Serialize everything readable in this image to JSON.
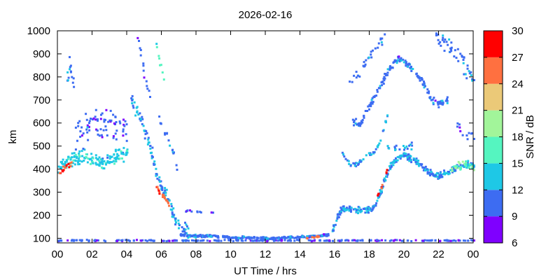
{
  "chart_data": {
    "type": "heatmap",
    "title": "2026-02-16",
    "xlabel": "UT Time / hrs",
    "ylabel": "km",
    "xlim": [
      0,
      24
    ],
    "ylim": [
      80,
      1000
    ],
    "x_ticks": [
      "00",
      "02",
      "04",
      "06",
      "08",
      "10",
      "12",
      "14",
      "16",
      "18",
      "20",
      "22",
      "00"
    ],
    "y_ticks": [
      "100",
      "200",
      "300",
      "400",
      "500",
      "600",
      "700",
      "800",
      "900",
      "1000"
    ],
    "x_tick_values": [
      0,
      2,
      4,
      6,
      8,
      10,
      12,
      14,
      16,
      18,
      20,
      22,
      24
    ],
    "y_tick_values": [
      100,
      200,
      300,
      400,
      500,
      600,
      700,
      800,
      900,
      1000
    ],
    "grid": false,
    "colorbar": {
      "label": "SNR / dB",
      "range": [
        6,
        30
      ],
      "ticks": [
        "30",
        "27",
        "24",
        "21",
        "18",
        "15",
        "12",
        "9",
        "6"
      ],
      "bands": [
        {
          "from": 6,
          "to": 9,
          "color": "#7f00ff"
        },
        {
          "from": 9,
          "to": 12,
          "color": "#3d6cf2"
        },
        {
          "from": 12,
          "to": 15,
          "color": "#1ec8e6"
        },
        {
          "from": 15,
          "to": 18,
          "color": "#55f5c0"
        },
        {
          "from": 18,
          "to": 21,
          "color": "#a2f59a"
        },
        {
          "from": 21,
          "to": 24,
          "color": "#ebc978"
        },
        {
          "from": 24,
          "to": 27,
          "color": "#ff7040"
        },
        {
          "from": 27,
          "to": 30,
          "color": "#ff0000"
        }
      ]
    },
    "series": [
      {
        "traces": [
          {
            "points": [
              [
                0.0,
                400
              ],
              [
                0.3,
                420
              ],
              [
                0.7,
                440
              ],
              [
                1.0,
                450
              ],
              [
                1.5,
                450
              ],
              [
                2.0,
                440
              ],
              [
                2.5,
                430
              ],
              [
                3.0,
                440
              ],
              [
                3.5,
                460
              ],
              [
                4.0,
                480
              ]
            ],
            "spread": 45,
            "snr": 14,
            "density": 28
          },
          {
            "points": [
              [
                0.0,
                380
              ],
              [
                0.4,
                410
              ],
              [
                0.8,
                430
              ]
            ],
            "spread": 15,
            "snr": 27,
            "density": 14
          },
          {
            "points": [
              [
                0.5,
                800
              ],
              [
                0.7,
                850
              ],
              [
                0.9,
                780
              ]
            ],
            "spread": 80,
            "snr": 11,
            "density": 18
          },
          {
            "points": [
              [
                1.0,
                560
              ],
              [
                2.0,
                580
              ],
              [
                3.0,
                600
              ],
              [
                4.0,
                560
              ]
            ],
            "spread": 110,
            "snr": 10,
            "density": 22
          },
          {
            "points": [
              [
                4.2,
                700
              ],
              [
                4.6,
                650
              ],
              [
                5.0,
                560
              ],
              [
                5.4,
                470
              ],
              [
                5.7,
                370
              ],
              [
                6.0,
                300
              ],
              [
                6.3,
                280
              ],
              [
                6.6,
                200
              ],
              [
                7.0,
                150
              ],
              [
                7.5,
                120
              ]
            ],
            "spread": 45,
            "snr": 12,
            "density": 24
          },
          {
            "points": [
              [
                5.6,
                320
              ],
              [
                5.9,
                300
              ],
              [
                6.2,
                270
              ],
              [
                6.4,
                250
              ]
            ],
            "spread": 20,
            "snr": 26,
            "density": 12
          },
          {
            "points": [
              [
                4.5,
                980
              ],
              [
                4.8,
                900
              ],
              [
                5.0,
                800
              ],
              [
                5.3,
                700
              ]
            ],
            "spread": 60,
            "snr": 10,
            "density": 10
          },
          {
            "points": [
              [
                5.6,
                960
              ],
              [
                5.8,
                880
              ],
              [
                6.0,
                820
              ],
              [
                6.1,
                780
              ]
            ],
            "spread": 20,
            "snr": 16,
            "density": 8
          },
          {
            "points": [
              [
                5.8,
                620
              ],
              [
                6.2,
                560
              ],
              [
                6.6,
                480
              ],
              [
                6.9,
                380
              ]
            ],
            "spread": 25,
            "snr": 11,
            "density": 10
          },
          {
            "points": [
              [
                7.0,
                115
              ],
              [
                8.0,
                110
              ],
              [
                9.0,
                108
              ],
              [
                10.0,
                104
              ],
              [
                11.0,
                102
              ],
              [
                12.0,
                100
              ],
              [
                13.0,
                102
              ],
              [
                14.0,
                105
              ],
              [
                15.0,
                110
              ],
              [
                15.6,
                115
              ]
            ],
            "spread": 8,
            "snr": 11,
            "density": 26
          },
          {
            "points": [
              [
                14.3,
                100
              ],
              [
                14.8,
                104
              ],
              [
                15.3,
                110
              ]
            ],
            "spread": 6,
            "snr": 26,
            "density": 6
          },
          {
            "points": [
              [
                7.2,
                220
              ],
              [
                8.0,
                215
              ],
              [
                9.0,
                210
              ]
            ],
            "spread": 6,
            "snr": 10,
            "density": 5
          },
          {
            "points": [
              [
                15.8,
                130
              ],
              [
                16.3,
                220
              ],
              [
                16.8,
                230
              ],
              [
                17.5,
                220
              ],
              [
                18.2,
                230
              ],
              [
                18.6,
                300
              ],
              [
                18.9,
                360
              ],
              [
                19.2,
                420
              ],
              [
                19.6,
                450
              ],
              [
                20.0,
                460
              ],
              [
                20.6,
                440
              ],
              [
                21.0,
                410
              ],
              [
                21.6,
                380
              ],
              [
                22.0,
                370
              ],
              [
                22.6,
                390
              ],
              [
                23.2,
                410
              ],
              [
                23.8,
                420
              ],
              [
                24.0,
                410
              ]
            ],
            "spread": 20,
            "snr": 12,
            "density": 30
          },
          {
            "points": [
              [
                18.4,
                280
              ],
              [
                18.6,
                310
              ],
              [
                18.8,
                350
              ],
              [
                19.0,
                400
              ]
            ],
            "spread": 8,
            "snr": 27,
            "density": 8
          },
          {
            "points": [
              [
                22.6,
                400
              ],
              [
                23.0,
                410
              ],
              [
                23.5,
                420
              ],
              [
                24.0,
                410
              ]
            ],
            "spread": 25,
            "snr": 18,
            "density": 14
          },
          {
            "points": [
              [
                16.4,
                470
              ],
              [
                16.8,
                420
              ],
              [
                17.3,
                420
              ],
              [
                17.8,
                460
              ],
              [
                18.2,
                470
              ],
              [
                18.6,
                520
              ],
              [
                19.0,
                640
              ]
            ],
            "spread": 12,
            "snr": 12,
            "density": 14
          },
          {
            "points": [
              [
                17.0,
                610
              ],
              [
                17.4,
                590
              ],
              [
                18.0,
                680
              ],
              [
                18.6,
                760
              ],
              [
                19.0,
                820
              ],
              [
                19.6,
                880
              ],
              [
                20.2,
                850
              ],
              [
                21.0,
                780
              ],
              [
                21.6,
                700
              ],
              [
                22.0,
                680
              ],
              [
                22.5,
                700
              ]
            ],
            "spread": 22,
            "snr": 11,
            "density": 22
          },
          {
            "points": [
              [
                19.0,
                500
              ],
              [
                19.5,
                490
              ],
              [
                20.5,
                500
              ]
            ],
            "spread": 20,
            "snr": 12,
            "density": 10
          },
          {
            "points": [
              [
                21.8,
                980
              ],
              [
                22.4,
                950
              ],
              [
                23.0,
                900
              ],
              [
                23.5,
                840
              ],
              [
                24.0,
                780
              ]
            ],
            "spread": 70,
            "snr": 11,
            "density": 16
          },
          {
            "points": [
              [
                16.8,
                780
              ],
              [
                17.4,
                820
              ],
              [
                17.9,
                880
              ],
              [
                18.5,
                950
              ],
              [
                18.9,
                980
              ]
            ],
            "spread": 30,
            "snr": 11,
            "density": 10
          },
          {
            "points": [
              [
                23.0,
                600
              ],
              [
                23.5,
                560
              ],
              [
                24.0,
                520
              ]
            ],
            "spread": 60,
            "snr": 10,
            "density": 8
          },
          {
            "points": [
              [
                0.0,
                90
              ],
              [
                4.5,
                90
              ],
              [
                8.0,
                90
              ],
              [
                12.0,
                90
              ],
              [
                16.0,
                90
              ],
              [
                20.0,
                90
              ],
              [
                24.0,
                90
              ]
            ],
            "spread": 4,
            "snr": 10,
            "density": 10
          }
        ]
      }
    ]
  }
}
